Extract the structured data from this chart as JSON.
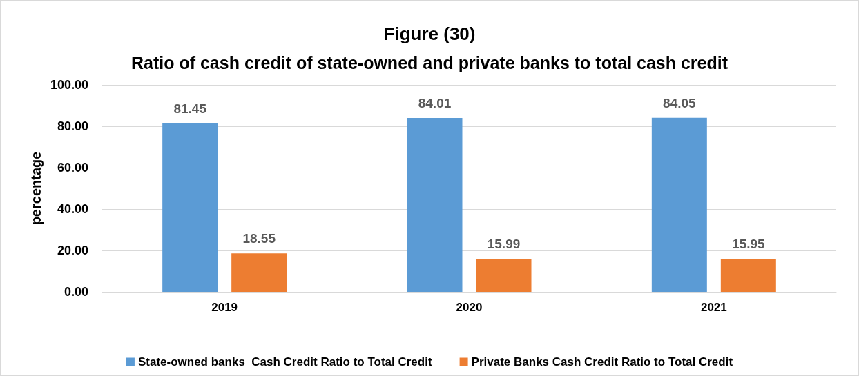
{
  "chart_data": {
    "type": "bar",
    "title": "Figure (30)",
    "subtitle": "Ratio of cash credit of state-owned and private banks to total cash credit",
    "ylabel": "percentage",
    "categories": [
      "2019",
      "2020",
      "2021"
    ],
    "series": [
      {
        "name": "State-owned banks  Cash Credit Ratio to Total Credit",
        "color": "#5b9bd5",
        "values": [
          81.45,
          84.01,
          84.05
        ]
      },
      {
        "name": "Private Banks Cash Credit Ratio to Total Credit",
        "color": "#ed7d31",
        "values": [
          18.55,
          15.99,
          15.95
        ]
      }
    ],
    "ylim": [
      0,
      100
    ],
    "yticks": [
      {
        "value": 0,
        "label": "0.00"
      },
      {
        "value": 20,
        "label": "20.00"
      },
      {
        "value": 40,
        "label": "40.00"
      },
      {
        "value": 60,
        "label": "60.00"
      },
      {
        "value": 80,
        "label": "80.00"
      },
      {
        "value": 100,
        "label": "100.00"
      }
    ],
    "grid": "y",
    "legend": "bottom",
    "data_labels": true
  }
}
